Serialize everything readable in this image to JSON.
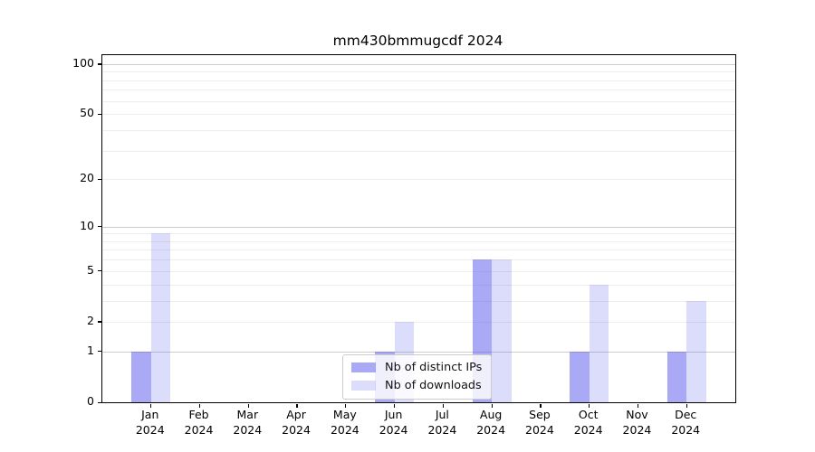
{
  "chart_data": {
    "type": "bar",
    "title": "mm430bmmugcdf 2024",
    "categories": [
      {
        "month": "Jan",
        "year": "2024"
      },
      {
        "month": "Feb",
        "year": "2024"
      },
      {
        "month": "Mar",
        "year": "2024"
      },
      {
        "month": "Apr",
        "year": "2024"
      },
      {
        "month": "May",
        "year": "2024"
      },
      {
        "month": "Jun",
        "year": "2024"
      },
      {
        "month": "Jul",
        "year": "2024"
      },
      {
        "month": "Aug",
        "year": "2024"
      },
      {
        "month": "Sep",
        "year": "2024"
      },
      {
        "month": "Oct",
        "year": "2024"
      },
      {
        "month": "Nov",
        "year": "2024"
      },
      {
        "month": "Dec",
        "year": "2024"
      }
    ],
    "series": [
      {
        "name": "Nb of distinct IPs",
        "color": "#5050eb",
        "alpha": 0.49,
        "rendered_hex_on_white": "#a9a9f5",
        "values": [
          1,
          0,
          0,
          0,
          0,
          1,
          0,
          6,
          0,
          1,
          0,
          1
        ]
      },
      {
        "name": "Nb of downloads",
        "color": "#5050eb",
        "alpha": 0.2,
        "rendered_hex_on_white": "#dcdcf8",
        "values": [
          9,
          0,
          0,
          0,
          0,
          2,
          0,
          6,
          0,
          4,
          0,
          3
        ]
      }
    ],
    "xlabel": "",
    "ylabel": "",
    "yscale": "log10(1+x)",
    "ylim": [
      0,
      113
    ],
    "yticks": [
      0,
      1,
      2,
      5,
      10,
      20,
      50,
      100
    ],
    "grid": {
      "on": true,
      "major_values": [
        1,
        10,
        100
      ],
      "minor_values": [
        2,
        3,
        4,
        5,
        6,
        7,
        8,
        9,
        20,
        30,
        40,
        50,
        60,
        70,
        80,
        90
      ],
      "major_color": "#cccccc",
      "minor_color": "#ededed"
    },
    "legend": {
      "position": "lower center",
      "entries": [
        "Nb of distinct IPs",
        "Nb of downloads"
      ]
    }
  }
}
